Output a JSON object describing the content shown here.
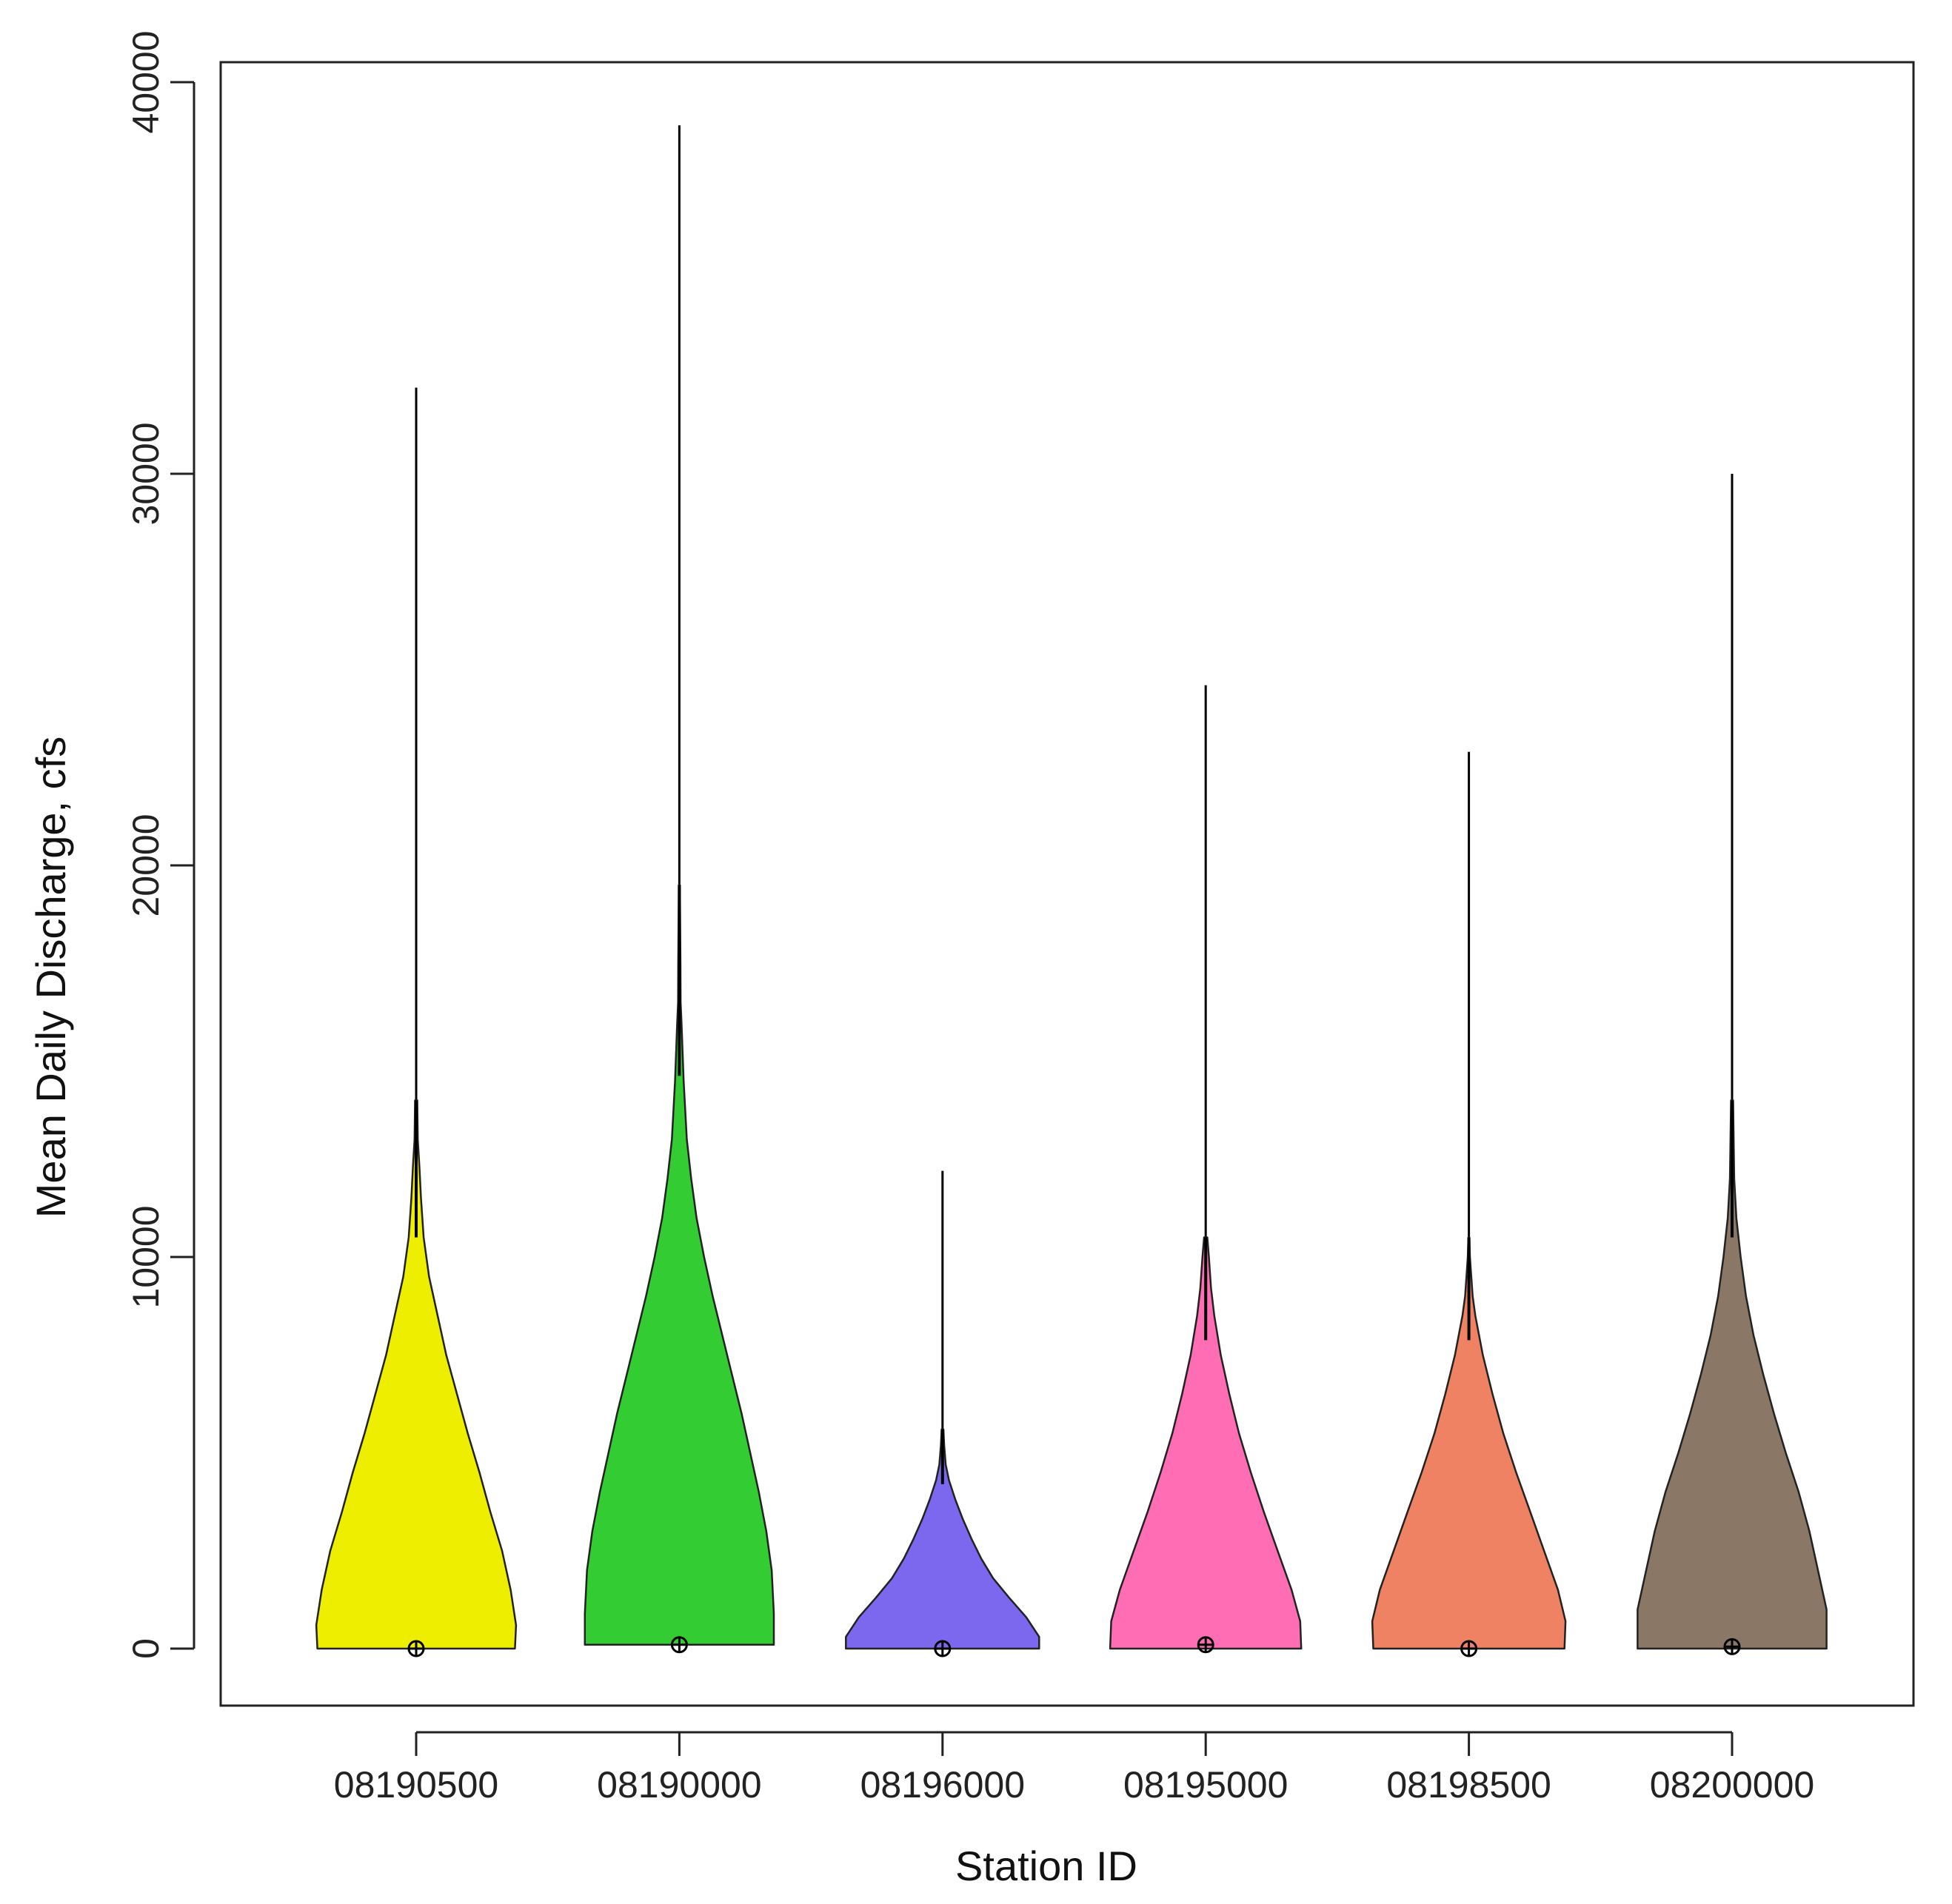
{
  "chart_data": {
    "type": "violin",
    "title": "",
    "xlabel": "Station ID",
    "ylabel": "Mean Daily Discharge, cfs",
    "ylim": [
      -1500,
      41500
    ],
    "yticks": [
      0,
      10000,
      20000,
      30000,
      40000
    ],
    "yticklabels": [
      "0",
      "10000",
      "20000",
      "30000",
      "40000"
    ],
    "categories": [
      "08190500",
      "08190000",
      "08196000",
      "08195000",
      "08198500",
      "08200000"
    ],
    "series": [
      {
        "name": "08190500",
        "color": "#EEEE00",
        "max": 32200,
        "median": 0,
        "profile": [
          [
            0,
            0.92
          ],
          [
            600,
            0.93
          ],
          [
            1500,
            0.88
          ],
          [
            2500,
            0.8
          ],
          [
            3500,
            0.69
          ],
          [
            4500,
            0.59
          ],
          [
            5500,
            0.48
          ],
          [
            6500,
            0.38
          ],
          [
            7500,
            0.28
          ],
          [
            8500,
            0.2
          ],
          [
            9500,
            0.12
          ],
          [
            10500,
            0.07
          ],
          [
            11500,
            0.045
          ],
          [
            12300,
            0.03
          ],
          [
            13000,
            0.015
          ],
          [
            14000,
            0.01
          ]
        ]
      },
      {
        "name": "08190000",
        "color": "#33CC33",
        "max": 38900,
        "median": 100,
        "profile": [
          [
            100,
            0.88
          ],
          [
            900,
            0.88
          ],
          [
            2000,
            0.86
          ],
          [
            3000,
            0.81
          ],
          [
            4000,
            0.74
          ],
          [
            5000,
            0.66
          ],
          [
            6000,
            0.58
          ],
          [
            7000,
            0.49
          ],
          [
            8000,
            0.4
          ],
          [
            9000,
            0.31
          ],
          [
            10000,
            0.23
          ],
          [
            11000,
            0.16
          ],
          [
            12000,
            0.11
          ],
          [
            13000,
            0.07
          ],
          [
            14500,
            0.04
          ],
          [
            16000,
            0.02
          ],
          [
            16500,
            0.012
          ],
          [
            17500,
            0.01
          ],
          [
            19500,
            0.005
          ]
        ]
      },
      {
        "name": "08196000",
        "color": "#7B68EE",
        "max": 12200,
        "median": 0,
        "profile": [
          [
            0,
            0.9
          ],
          [
            300,
            0.9
          ],
          [
            800,
            0.78
          ],
          [
            1300,
            0.62
          ],
          [
            1800,
            0.47
          ],
          [
            2300,
            0.36
          ],
          [
            2800,
            0.27
          ],
          [
            3300,
            0.19
          ],
          [
            3800,
            0.12
          ],
          [
            4300,
            0.06
          ],
          [
            4700,
            0.03
          ],
          [
            5200,
            0.015
          ],
          [
            5600,
            0.008
          ]
        ]
      },
      {
        "name": "08195000",
        "color": "#FF6EB4",
        "max": 24600,
        "median": 100,
        "profile": [
          [
            0,
            0.89
          ],
          [
            700,
            0.88
          ],
          [
            1500,
            0.8
          ],
          [
            2500,
            0.67
          ],
          [
            3500,
            0.54
          ],
          [
            4500,
            0.42
          ],
          [
            5500,
            0.31
          ],
          [
            6500,
            0.22
          ],
          [
            7500,
            0.14
          ],
          [
            8500,
            0.08
          ],
          [
            9200,
            0.05
          ],
          [
            10000,
            0.03
          ],
          [
            10500,
            0.015
          ]
        ]
      },
      {
        "name": "08198500",
        "color": "#EE8262",
        "max": 22900,
        "median": 0,
        "profile": [
          [
            0,
            0.89
          ],
          [
            700,
            0.9
          ],
          [
            1500,
            0.83
          ],
          [
            2500,
            0.7
          ],
          [
            3500,
            0.57
          ],
          [
            4500,
            0.44
          ],
          [
            5500,
            0.32
          ],
          [
            6500,
            0.22
          ],
          [
            7500,
            0.13
          ],
          [
            8500,
            0.06
          ],
          [
            9000,
            0.035
          ],
          [
            10000,
            0.01
          ],
          [
            10500,
            0.005
          ]
        ]
      },
      {
        "name": "08200000",
        "color": "#8B7765",
        "max": 30000,
        "median": 50,
        "profile": [
          [
            0,
            0.88
          ],
          [
            1000,
            0.88
          ],
          [
            2000,
            0.8
          ],
          [
            3000,
            0.72
          ],
          [
            4000,
            0.62
          ],
          [
            5000,
            0.5
          ],
          [
            6000,
            0.39
          ],
          [
            7000,
            0.29
          ],
          [
            8000,
            0.2
          ],
          [
            9000,
            0.13
          ],
          [
            10000,
            0.08
          ],
          [
            11000,
            0.04
          ],
          [
            12000,
            0.02
          ],
          [
            14000,
            0.01
          ]
        ]
      }
    ]
  }
}
